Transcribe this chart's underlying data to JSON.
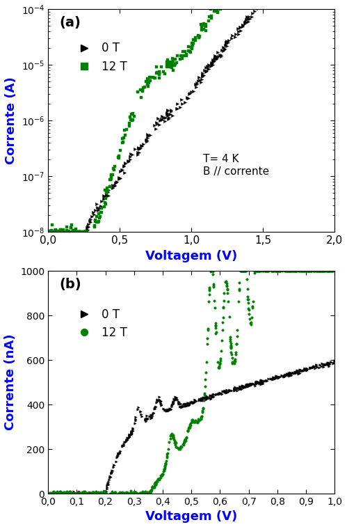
{
  "fig_width": 4.99,
  "fig_height": 7.57,
  "dpi": 100,
  "bg_color": "#ffffff",
  "panel_a": {
    "label": "(a)",
    "xlabel": "Voltagem (V)",
    "ylabel": "Corrente (A)",
    "xlim": [
      0.0,
      2.0
    ],
    "ylim_log": [
      -8,
      -4
    ],
    "annotation": "T= 4 K\nB // corrente",
    "legend_0T": "0 T",
    "legend_12T": "12 T",
    "color_0T": "#000000",
    "color_12T": "#008000",
    "xticks": [
      0.0,
      0.5,
      1.0,
      1.5,
      2.0
    ],
    "xticklabels": [
      "0,0",
      "0,5",
      "1,0",
      "1,5",
      "2,0"
    ]
  },
  "panel_b": {
    "label": "(b)",
    "xlabel": "Voltagem (V)",
    "ylabel": "Corrente (nA)",
    "xlim": [
      0.0,
      1.0
    ],
    "ylim": [
      0,
      1000
    ],
    "legend_0T": "0 T",
    "legend_12T": "12 T",
    "color_0T": "#000000",
    "color_12T": "#008000",
    "xticks": [
      0.0,
      0.1,
      0.2,
      0.3,
      0.4,
      0.5,
      0.6,
      0.7,
      0.8,
      0.9,
      1.0
    ],
    "xticklabels": [
      "0,0",
      "0,1",
      "0,2",
      "0,3",
      "0,4",
      "0,5",
      "0,6",
      "0,7",
      "0,8",
      "0,9",
      "1,0"
    ],
    "yticks": [
      0,
      200,
      400,
      600,
      800,
      1000
    ]
  }
}
